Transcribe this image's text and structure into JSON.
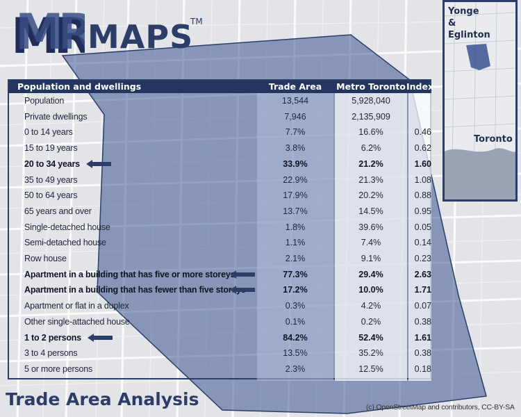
{
  "brand": {
    "name": "MAPS",
    "trademark": "TM"
  },
  "inset": {
    "area_label_line1": "Yonge",
    "area_label_line2": "&",
    "area_label_line3": "Eglinton",
    "city_label": "Toronto"
  },
  "table": {
    "headers": {
      "category": "Population and dwellings",
      "trade_area": "Trade Area",
      "metro": "Metro Toronto",
      "index": "Index"
    },
    "rows": [
      {
        "label": "Population",
        "trade_area": "13,544",
        "metro": "5,928,040",
        "index": "",
        "highlight": false
      },
      {
        "label": "Private dwellings",
        "trade_area": "7,946",
        "metro": "2,135,909",
        "index": "",
        "highlight": false
      },
      {
        "label": "0 to 14 years",
        "trade_area": "7.7%",
        "metro": "16.6%",
        "index": "0.46",
        "highlight": false
      },
      {
        "label": "15 to 19 years",
        "trade_area": "3.8%",
        "metro": "6.2%",
        "index": "0.62",
        "highlight": false
      },
      {
        "label": "20 to 34 years",
        "trade_area": "33.9%",
        "metro": "21.2%",
        "index": "1.60",
        "highlight": true
      },
      {
        "label": "35 to 49 years",
        "trade_area": "22.9%",
        "metro": "21.3%",
        "index": "1.08",
        "highlight": false
      },
      {
        "label": "50 to 64 years",
        "trade_area": "17.9%",
        "metro": "20.2%",
        "index": "0.88",
        "highlight": false
      },
      {
        "label": "65 years and over",
        "trade_area": "13.7%",
        "metro": "14.5%",
        "index": "0.95",
        "highlight": false
      },
      {
        "label": "Single-detached house",
        "trade_area": "1.8%",
        "metro": "39.6%",
        "index": "0.05",
        "highlight": false
      },
      {
        "label": "Semi-detached house",
        "trade_area": "1.1%",
        "metro": "7.4%",
        "index": "0.14",
        "highlight": false
      },
      {
        "label": "Row house",
        "trade_area": "2.1%",
        "metro": "9.1%",
        "index": "0.23",
        "highlight": false
      },
      {
        "label": "Apartment in a building that has five or more storeys",
        "trade_area": "77.3%",
        "metro": "29.4%",
        "index": "2.63",
        "highlight": true
      },
      {
        "label": "Apartment in a building that has fewer than five storeys",
        "trade_area": "17.2%",
        "metro": "10.0%",
        "index": "1.71",
        "highlight": true
      },
      {
        "label": "Apartment or flat in a duplex",
        "trade_area": "0.3%",
        "metro": "4.2%",
        "index": "0.07",
        "highlight": false
      },
      {
        "label": "Other single-attached house",
        "trade_area": "0.1%",
        "metro": "0.2%",
        "index": "0.38",
        "highlight": false
      },
      {
        "label": "1 to 2 persons",
        "trade_area": "84.2%",
        "metro": "52.4%",
        "index": "1.61",
        "highlight": true
      },
      {
        "label": "3 to 4 persons",
        "trade_area": "13.5%",
        "metro": "35.2%",
        "index": "0.38",
        "highlight": false
      },
      {
        "label": "5 or more persons",
        "trade_area": "2.3%",
        "metro": "12.5%",
        "index": "0.18",
        "highlight": false
      }
    ]
  },
  "footer": {
    "title": "Trade Area Analysis",
    "credit": "(c) OpenStreetMap and contributors, CC-BY-SA"
  },
  "colors": {
    "brand_navy": "#2c3d68",
    "header_navy": "#24365f",
    "trade_area_overlay": "#3b5490",
    "arrow": "#2c3d68"
  },
  "icons": {
    "highlight_marker": "left-arrow-icon"
  }
}
